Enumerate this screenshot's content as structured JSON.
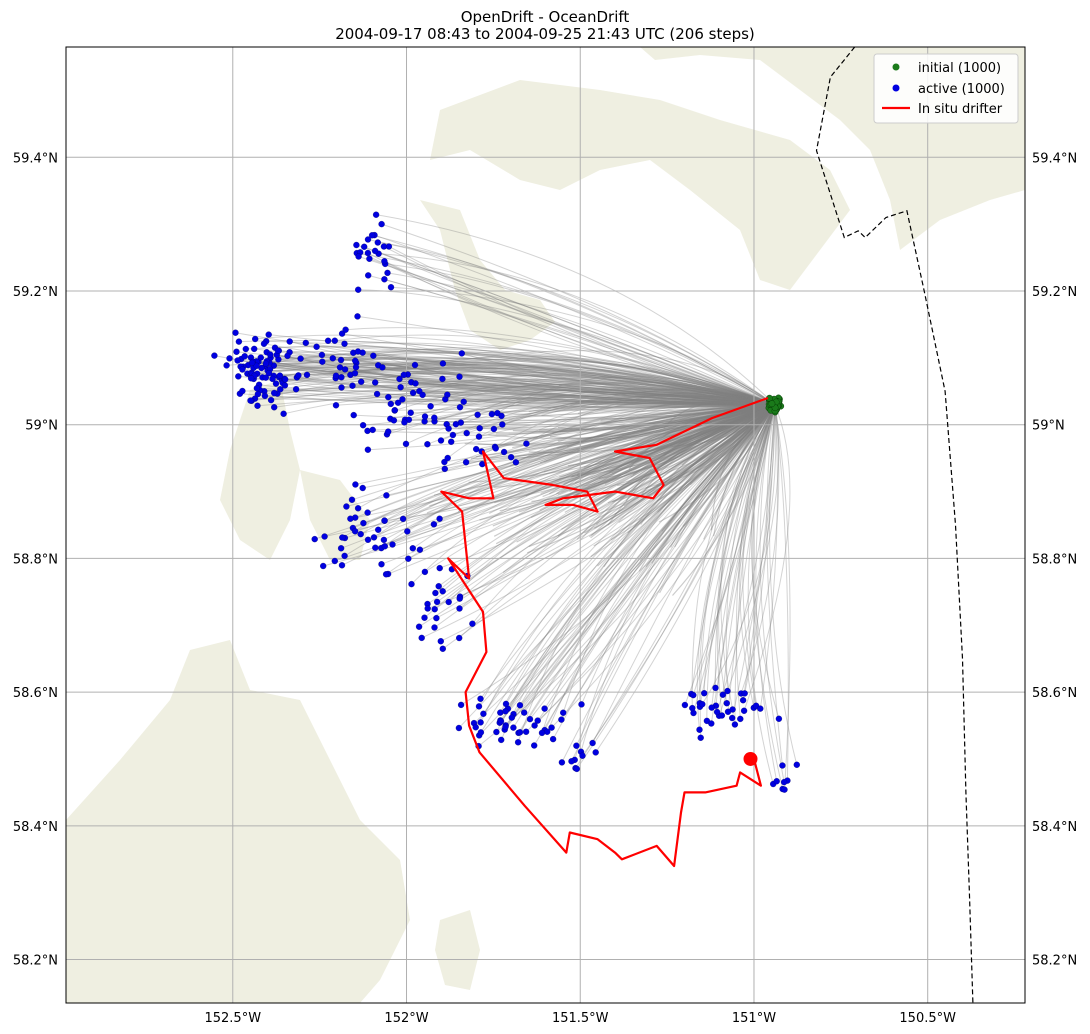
{
  "title": {
    "line1": "OpenDrift - OceanDrift",
    "line2": "2004-09-17 08:43 to 2004-09-25 21:43 UTC (206 steps)"
  },
  "axes": {
    "lon_range": [
      -152.98,
      -150.22
    ],
    "lat_range": [
      58.135,
      59.565
    ],
    "x_ticks": [
      {
        "value": -152.5,
        "label": "152.5°W"
      },
      {
        "value": -152.0,
        "label": "152°W"
      },
      {
        "value": -151.5,
        "label": "151.5°W"
      },
      {
        "value": -151.0,
        "label": "151°W"
      },
      {
        "value": -150.5,
        "label": "150.5°W"
      }
    ],
    "y_ticks": [
      {
        "value": 58.2,
        "label": "58.2°N"
      },
      {
        "value": 58.4,
        "label": "58.4°N"
      },
      {
        "value": 58.6,
        "label": "58.6°N"
      },
      {
        "value": 58.8,
        "label": "58.8°N"
      },
      {
        "value": 59.0,
        "label": "59°N"
      },
      {
        "value": 59.2,
        "label": "59.2°N"
      },
      {
        "value": 59.4,
        "label": "59.4°N"
      }
    ],
    "grid": true
  },
  "legend": {
    "position": "top-right",
    "entries": [
      {
        "label": "initial (1000)",
        "color": "#1a7a1a",
        "marker": "dot"
      },
      {
        "label": "active (1000)",
        "color": "#0000e0",
        "marker": "dot"
      },
      {
        "label": "In situ drifter",
        "color": "#ff0000",
        "marker": "line"
      }
    ]
  },
  "colors": {
    "land": "#efefe1",
    "trajectories": "#808080",
    "initial": "#1a7a1a",
    "active": "#0000e0",
    "drifter": "#ff0000",
    "boundary": "#000000",
    "grid": "#b0b0b0"
  },
  "chart_data": {
    "type": "map-trajectories",
    "seed_center": {
      "lon": -150.94,
      "lat": 59.03
    },
    "particle_counts": {
      "initial": 1000,
      "active": 1000
    },
    "drifter_track": [
      [
        -150.96,
        59.04
      ],
      [
        -151.12,
        59.01
      ],
      [
        -151.28,
        58.97
      ],
      [
        -151.4,
        58.96
      ],
      [
        -151.3,
        58.95
      ],
      [
        -151.26,
        58.91
      ],
      [
        -151.29,
        58.89
      ],
      [
        -151.4,
        58.9
      ],
      [
        -151.55,
        58.89
      ],
      [
        -151.6,
        58.88
      ],
      [
        -151.52,
        58.88
      ],
      [
        -151.45,
        58.87
      ],
      [
        -151.48,
        58.9
      ],
      [
        -151.58,
        58.91
      ],
      [
        -151.72,
        58.92
      ],
      [
        -151.78,
        58.96
      ],
      [
        -151.75,
        58.89
      ],
      [
        -151.82,
        58.89
      ],
      [
        -151.9,
        58.9
      ],
      [
        -151.84,
        58.87
      ],
      [
        -151.82,
        58.77
      ],
      [
        -151.88,
        58.8
      ],
      [
        -151.78,
        58.72
      ],
      [
        -151.77,
        58.66
      ],
      [
        -151.83,
        58.6
      ],
      [
        -151.82,
        58.55
      ],
      [
        -151.79,
        58.51
      ],
      [
        -151.66,
        58.43
      ],
      [
        -151.54,
        58.36
      ],
      [
        -151.53,
        58.39
      ],
      [
        -151.45,
        58.38
      ],
      [
        -151.4,
        58.36
      ],
      [
        -151.38,
        58.35
      ],
      [
        -151.28,
        58.37
      ],
      [
        -151.23,
        58.34
      ],
      [
        -151.21,
        58.42
      ],
      [
        -151.2,
        58.45
      ],
      [
        -151.14,
        58.45
      ],
      [
        -151.05,
        58.46
      ],
      [
        -151.04,
        58.48
      ],
      [
        -150.98,
        58.46
      ],
      [
        -151.0,
        58.5
      ]
    ],
    "drifter_end": {
      "lon": -151.01,
      "lat": 58.5
    },
    "boundary_line": [
      [
        -150.71,
        59.565
      ],
      [
        -150.78,
        59.52
      ],
      [
        -150.82,
        59.41
      ],
      [
        -150.74,
        59.28
      ],
      [
        -150.7,
        59.29
      ],
      [
        -150.68,
        59.28
      ],
      [
        -150.62,
        59.31
      ],
      [
        -150.56,
        59.32
      ],
      [
        -150.51,
        59.2
      ],
      [
        -150.45,
        59.05
      ],
      [
        -150.42,
        58.85
      ],
      [
        -150.4,
        58.65
      ],
      [
        -150.39,
        58.45
      ],
      [
        -150.38,
        58.3
      ],
      [
        -150.37,
        58.135
      ]
    ]
  }
}
